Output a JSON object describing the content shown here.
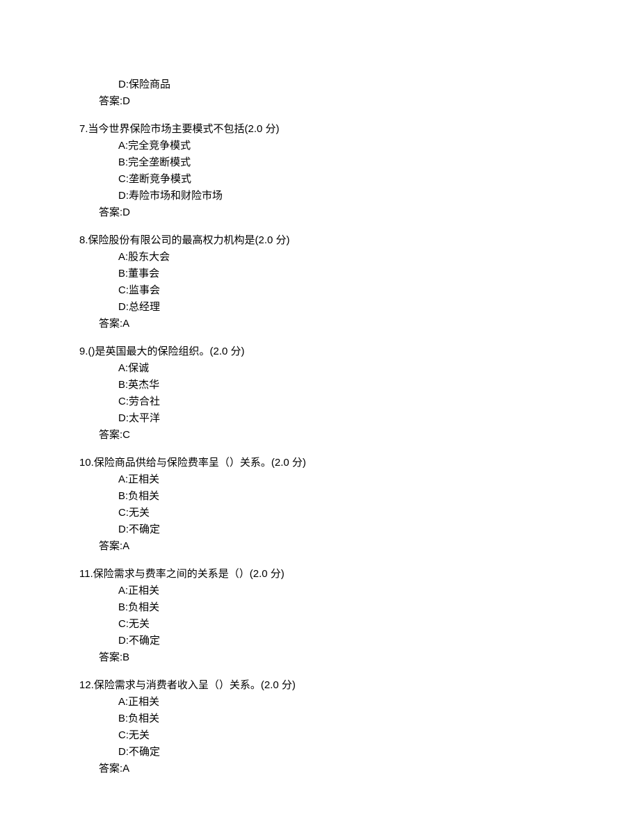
{
  "text_color": "#000000",
  "background_color": "#ffffff",
  "font_size": 15,
  "orphan": {
    "option_d": "D:保险商品",
    "answer": "答案:D"
  },
  "questions": [
    {
      "number": "7",
      "text": ".当今世界保险市场主要模式不包括",
      "points": "(2.0 分)",
      "options": {
        "a": "A:完全竞争模式",
        "b": "B:完全垄断模式",
        "c": "C:垄断竞争模式",
        "d": "D:寿险市场和财险市场"
      },
      "answer": "答案:D"
    },
    {
      "number": "8",
      "text": ".保险股份有限公司的最高权力机构是",
      "points": "(2.0 分)",
      "options": {
        "a": "A:股东大会",
        "b": "B:董事会",
        "c": "C:监事会",
        "d": "D:总经理"
      },
      "answer": "答案:A"
    },
    {
      "number": "9",
      "text": ".()是英国最大的保险组织。",
      "points": "(2.0 分)",
      "options": {
        "a": "A:保诚",
        "b": "B:英杰华",
        "c": "C:劳合社",
        "d": "D:太平洋"
      },
      "answer": "答案:C"
    },
    {
      "number": "10",
      "text": ".保险商品供给与保险费率呈（）关系。",
      "points": "(2.0 分)",
      "options": {
        "a": "A:正相关",
        "b": "B:负相关",
        "c": "C:无关",
        "d": "D:不确定"
      },
      "answer": "答案:A"
    },
    {
      "number": "11",
      "text": ".保险需求与费率之间的关系是（）",
      "points": "(2.0 分)",
      "options": {
        "a": "A:正相关",
        "b": "B:负相关",
        "c": "C:无关",
        "d": "D:不确定"
      },
      "answer": "答案:B"
    },
    {
      "number": "12",
      "text": ".保险需求与消费者收入呈（）关系。",
      "points": "(2.0 分)",
      "options": {
        "a": "A:正相关",
        "b": "B:负相关",
        "c": "C:无关",
        "d": "D:不确定"
      },
      "answer": "答案:A"
    }
  ]
}
